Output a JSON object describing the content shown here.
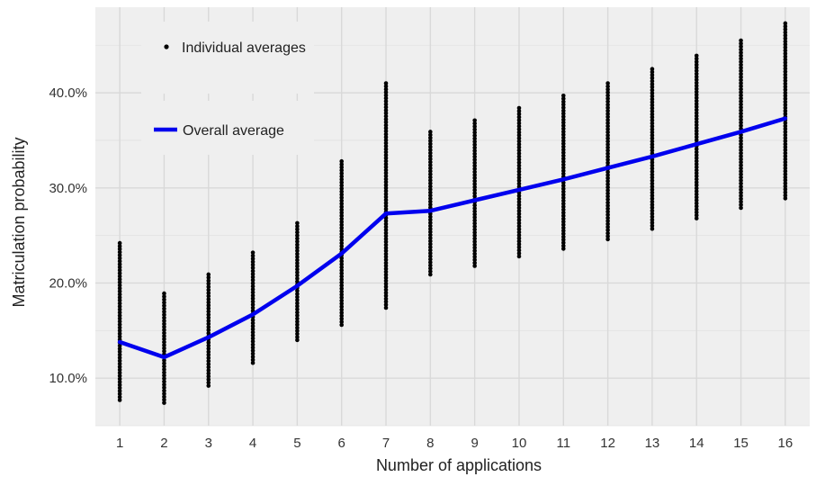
{
  "chart_data": {
    "type": "scatter",
    "title": "",
    "xlabel": "Number of applications",
    "ylabel": "Matriculation probability",
    "x_ticks": [
      "1",
      "2",
      "3",
      "4",
      "5",
      "6",
      "7",
      "8",
      "9",
      "10",
      "11",
      "12",
      "13",
      "14",
      "15",
      "16"
    ],
    "y_ticks": [
      {
        "value": 10,
        "label": "10.0%"
      },
      {
        "value": 20,
        "label": "20.0%"
      },
      {
        "value": 30,
        "label": "30.0%"
      },
      {
        "value": 40,
        "label": "40.0%"
      }
    ],
    "xlim": [
      0.45,
      16.55
    ],
    "ylim": [
      5,
      49
    ],
    "grid": true,
    "legend_position": "top-left",
    "legend": {
      "points_label": "Individual averages",
      "line_label": "Overall average"
    },
    "colors": {
      "panel": "#efefef",
      "grid": "#d9d9d9",
      "points": "#000000",
      "line": "#0000ee"
    },
    "series": [
      {
        "name": "Individual averages",
        "kind": "points",
        "groups": [
          {
            "x": 1,
            "min": 7.7,
            "max": 24.2
          },
          {
            "x": 2,
            "min": 7.4,
            "max": 18.9
          },
          {
            "x": 3,
            "min": 9.2,
            "max": 20.9
          },
          {
            "x": 4,
            "min": 11.6,
            "max": 23.2
          },
          {
            "x": 5,
            "min": 14.0,
            "max": 26.3
          },
          {
            "x": 6,
            "min": 15.6,
            "max": 32.8
          },
          {
            "x": 7,
            "min": 17.4,
            "max": 41.0
          },
          {
            "x": 8,
            "min": 20.9,
            "max": 35.9
          },
          {
            "x": 9,
            "min": 21.8,
            "max": 37.1
          },
          {
            "x": 10,
            "min": 22.8,
            "max": 38.4
          },
          {
            "x": 11,
            "min": 23.6,
            "max": 39.7
          },
          {
            "x": 12,
            "min": 24.6,
            "max": 41.0
          },
          {
            "x": 13,
            "min": 25.7,
            "max": 42.5
          },
          {
            "x": 14,
            "min": 26.8,
            "max": 43.9
          },
          {
            "x": 15,
            "min": 27.9,
            "max": 45.5
          },
          {
            "x": 16,
            "min": 28.9,
            "max": 47.3
          }
        ]
      },
      {
        "name": "Overall average",
        "kind": "line",
        "x": [
          1,
          2,
          3,
          4,
          5,
          6,
          7,
          8,
          9,
          10,
          11,
          12,
          13,
          14,
          15,
          16
        ],
        "y": [
          13.8,
          12.2,
          14.3,
          16.7,
          19.7,
          23.1,
          27.3,
          27.6,
          28.7,
          29.8,
          30.9,
          32.1,
          33.3,
          34.6,
          35.9,
          37.3
        ]
      }
    ]
  }
}
